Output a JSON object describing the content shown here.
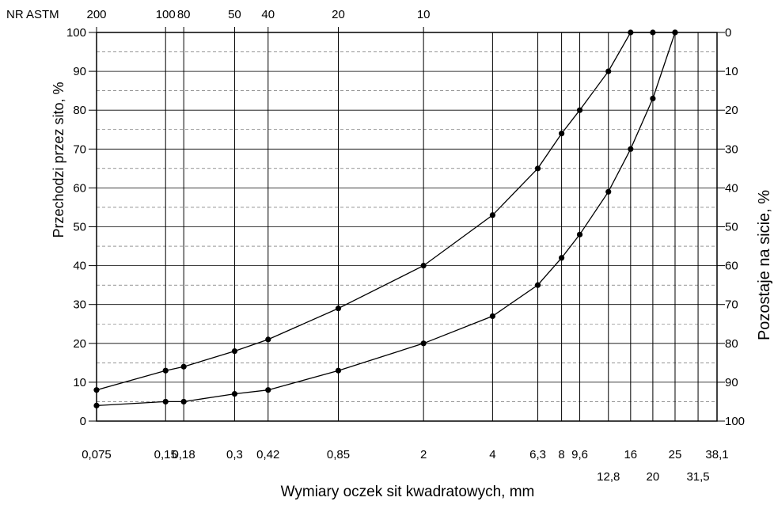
{
  "chart_data": {
    "type": "line",
    "xlabel": "Wymiary oczek sit kwadratowych, mm",
    "ylabel": "Przechodzi przez sito, %",
    "y2label": "Pozostaje na sicie, %",
    "x_scale": "log",
    "ylim": [
      0,
      100
    ],
    "y_ticks": [
      0,
      10,
      20,
      30,
      40,
      50,
      60,
      70,
      80,
      90,
      100
    ],
    "y2_ticks": [
      100,
      90,
      80,
      70,
      60,
      50,
      40,
      30,
      20,
      10,
      0
    ],
    "grid": true,
    "sieves_mm": [
      0.075,
      0.15,
      0.18,
      0.3,
      0.42,
      0.85,
      2,
      4,
      6.3,
      8,
      9.6,
      12.8,
      16,
      20,
      25,
      31.5,
      38.1
    ],
    "x_tick_labels": [
      "0,075",
      "0,15",
      "0,18",
      "0,3",
      "0,42",
      "0,85",
      "2",
      "4",
      "6,3",
      "8",
      "9,6",
      "12,8",
      "16",
      "20",
      "25",
      "31,5",
      "38,1"
    ],
    "astm_label": "NR ASTM",
    "astm_sieves": [
      {
        "label": "200",
        "mm": 0.075
      },
      {
        "label": "100",
        "mm": 0.15
      },
      {
        "label": "80",
        "mm": 0.18
      },
      {
        "label": "50",
        "mm": 0.3
      },
      {
        "label": "40",
        "mm": 0.42
      },
      {
        "label": "20",
        "mm": 0.85
      },
      {
        "label": "10",
        "mm": 2
      }
    ],
    "series": [
      {
        "x": [
          0.075,
          0.15,
          0.18,
          0.3,
          0.42,
          0.85,
          2,
          4,
          6.3,
          8,
          9.6,
          12.8,
          16,
          20,
          25
        ],
        "values": [
          8,
          13,
          14,
          18,
          21,
          29,
          40,
          53,
          65,
          74,
          80,
          90,
          100,
          100,
          100
        ]
      },
      {
        "x": [
          0.075,
          0.15,
          0.18,
          0.3,
          0.42,
          0.85,
          2,
          4,
          6.3,
          8,
          9.6,
          12.8,
          16,
          20,
          25
        ],
        "values": [
          4,
          5,
          5,
          7,
          8,
          13,
          20,
          27,
          35,
          42,
          48,
          59,
          70,
          83,
          100
        ]
      }
    ]
  }
}
